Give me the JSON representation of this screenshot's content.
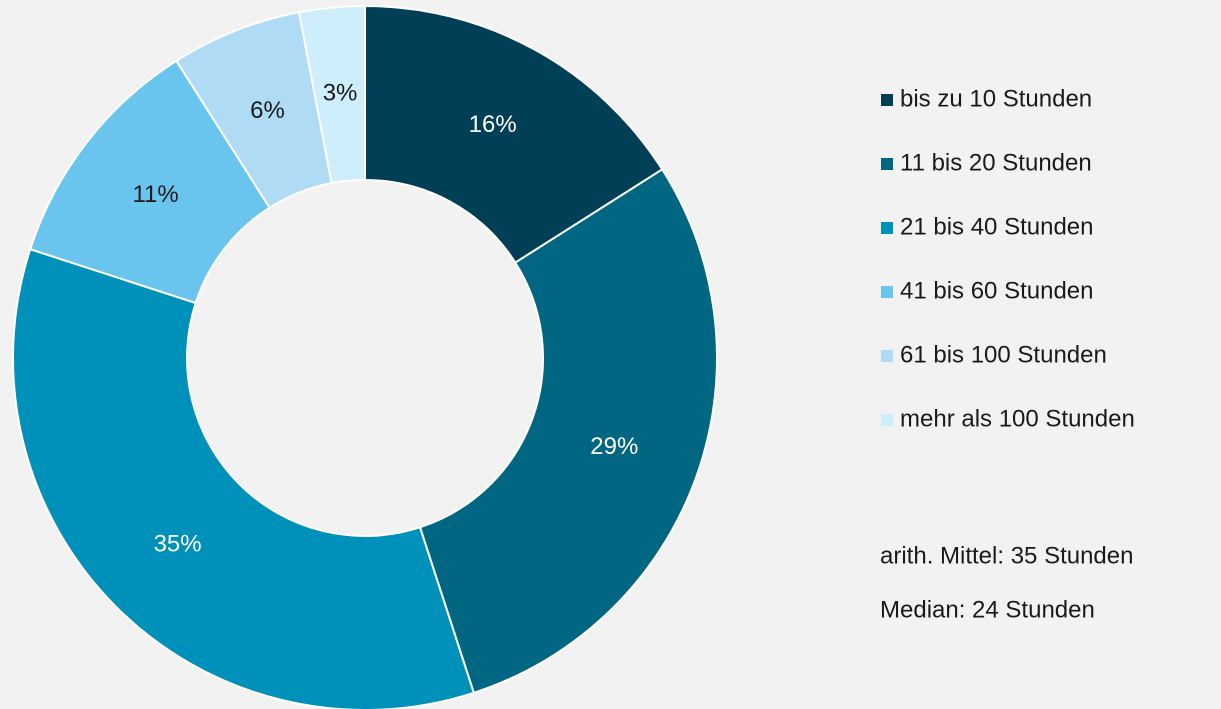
{
  "chart_data": {
    "type": "donut",
    "categories": [
      "bis zu 10 Stunden",
      "11 bis 20 Stunden",
      "21 bis 40 Stunden",
      "41 bis 60 Stunden",
      "61 bis 100 Stunden",
      "mehr als 100 Stunden"
    ],
    "values": [
      16,
      29,
      35,
      11,
      6,
      3
    ],
    "value_labels": [
      "16%",
      "29%",
      "35%",
      "11%",
      "6%",
      "3%"
    ],
    "colors": [
      "#003f55",
      "#006682",
      "#0091bb",
      "#6ac5ee",
      "#b0dbf5",
      "#cdeefa"
    ],
    "legend": "right",
    "annotations": [
      "arith. Mittel: 35 Stunden",
      "Median: 24 Stunden"
    ]
  }
}
